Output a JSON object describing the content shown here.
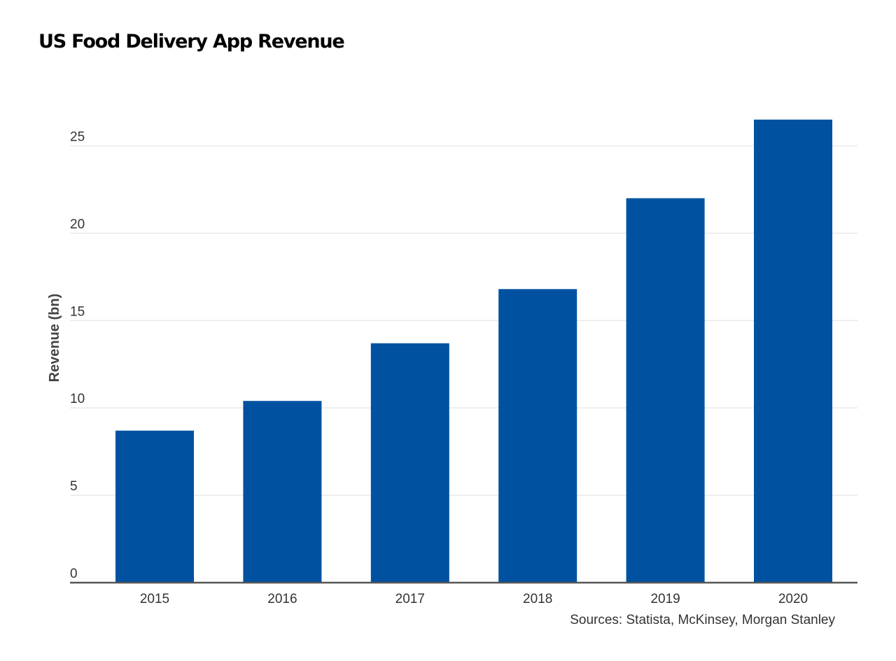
{
  "chart_data": {
    "type": "bar",
    "title": "US Food Delivery App Revenue",
    "xlabel": "",
    "ylabel": "Revenue (bn)",
    "categories": [
      "2015",
      "2016",
      "2017",
      "2018",
      "2019",
      "2020"
    ],
    "values": [
      8.7,
      10.4,
      13.7,
      16.8,
      22.0,
      26.5
    ],
    "ylim": [
      0,
      27.5
    ],
    "yticks": [
      0,
      5,
      10,
      15,
      20,
      25
    ],
    "grid": true,
    "legend": "none",
    "source": "Sources: Statista, McKinsey, Morgan Stanley",
    "colors": {
      "bar": "#0052A0",
      "grid": "#e9e9e9",
      "axis": "#555555"
    }
  }
}
